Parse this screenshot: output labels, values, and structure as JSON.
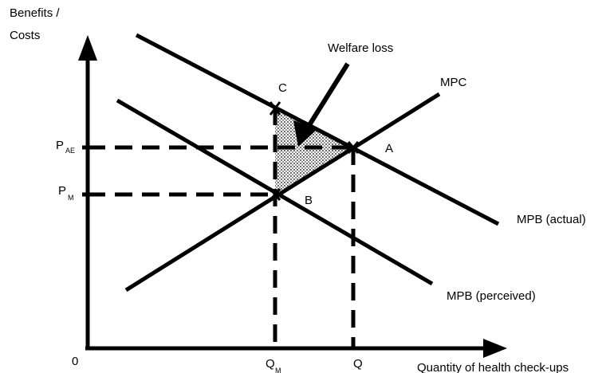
{
  "axes": {
    "y_label_line1": "Benefits /",
    "y_label_line2": "Costs",
    "x_label": "Quantity of health check-ups",
    "origin": "0"
  },
  "price_labels": {
    "p_ae": "P",
    "p_ae_sub": "AE",
    "p_m": "P",
    "p_m_sub": "M"
  },
  "quantity_labels": {
    "q_m": "Q",
    "q_m_sub": "M",
    "q_ae": "Q"
  },
  "curves": {
    "mpc": "MPC",
    "mpb_actual": "MPB (actual)",
    "mpb_perceived": "MPB (perceived)"
  },
  "points": {
    "a": "A",
    "b": "B",
    "c": "C"
  },
  "annotation": {
    "welfare_loss": "Welfare loss"
  },
  "colors": {
    "ink": "#000000",
    "shading": "#bdbdbd",
    "background": "#ffffff"
  }
}
